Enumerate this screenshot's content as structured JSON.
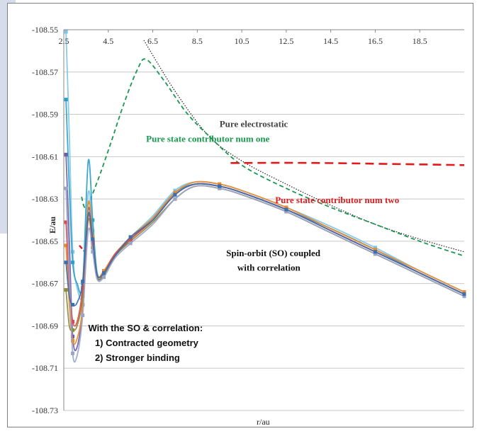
{
  "chart_data": {
    "type": "line",
    "xlabel": "r/au",
    "ylabel": "E/au",
    "x_ticks": [
      "2.5",
      "4.5",
      "6.5",
      "8.5",
      "10.5",
      "12.5",
      "14.5",
      "16.5",
      "18.5"
    ],
    "y_ticks": [
      "-108.55",
      "-108.57",
      "-108.59",
      "-108.61",
      "-108.63",
      "-108.65",
      "-108.67",
      "-108.69",
      "-108.71",
      "-108.73"
    ],
    "xlim": [
      2.5,
      20.5
    ],
    "ylim": [
      -108.73,
      -108.55
    ],
    "grid": "horizontal",
    "annotations": [
      {
        "text": "Pure electrostatic",
        "color": "#444444",
        "x": 9.5,
        "y": -108.596
      },
      {
        "text": "Pure state contributor num one",
        "color": "#1a9850",
        "x": 6.2,
        "y": -108.603
      },
      {
        "text": "Pure state contributor num two",
        "color": "#e31a1c",
        "x": 12.0,
        "y": -108.632
      },
      {
        "text": "Spin-orbit (SO) coupled",
        "color": "#111111",
        "x": 9.8,
        "y": -108.657
      },
      {
        "text": "with correlation",
        "color": "#111111",
        "x": 10.3,
        "y": -108.664
      }
    ],
    "note_lines": [
      "With the SO & correlation:",
      "1) Contracted geometry",
      "2) Stronger binding"
    ],
    "reference_curves": [
      {
        "name": "Pure electrostatic",
        "style": "dotted",
        "color": "#222222",
        "x": [
          6.1,
          7.5,
          9.0,
          10.5,
          12.5,
          14.5,
          16.5,
          18.5,
          20.5
        ],
        "y": [
          -108.555,
          -108.579,
          -108.6,
          -108.612,
          -108.623,
          -108.633,
          -108.642,
          -108.649,
          -108.655
        ]
      },
      {
        "name": "Pure state contributor num one",
        "style": "dashed",
        "color": "#1a9850",
        "x": [
          3.3,
          3.5,
          4.0,
          4.6,
          5.2,
          5.8,
          6.2,
          7.0,
          8.0,
          9.0,
          10.5,
          12.5,
          14.5,
          16.5,
          18.5,
          20.5
        ],
        "y": [
          -108.629,
          -108.634,
          -108.622,
          -108.604,
          -108.585,
          -108.569,
          -108.564,
          -108.574,
          -108.589,
          -108.6,
          -108.614,
          -108.625,
          -108.634,
          -108.642,
          -108.65,
          -108.657
        ]
      },
      {
        "name": "Pure state contributor num two",
        "style": "dashed",
        "color": "#e31a1c",
        "x": [
          10.0,
          14.0,
          20.5
        ],
        "y": [
          -108.613,
          -108.613,
          -108.614
        ]
      }
    ],
    "series": [
      {
        "color": "#7cc4e8",
        "x": [
          2.6,
          2.75,
          2.9,
          3.1,
          3.35,
          3.6,
          3.8,
          4.0,
          4.3,
          4.8,
          5.5,
          6.5,
          7.5,
          8.4,
          9.5,
          10.5,
          12.5,
          14.5,
          16.5,
          18.5,
          20.5
        ],
        "y": [
          -108.551,
          -108.6,
          -108.655,
          -108.672,
          -108.674,
          -108.627,
          -108.645,
          -108.666,
          -108.664,
          -108.656,
          -108.648,
          -108.638,
          -108.626,
          -108.622,
          -108.623,
          -108.626,
          -108.634,
          -108.643,
          -108.653,
          -108.664,
          -108.674
        ]
      },
      {
        "color": "#2a9fc9",
        "x": [
          2.6,
          2.75,
          2.9,
          3.1,
          3.35,
          3.6,
          3.8,
          4.0,
          4.3,
          4.8,
          5.5,
          6.5,
          7.5,
          8.4,
          9.5,
          10.5,
          12.5,
          14.5,
          16.5,
          18.5,
          20.5
        ],
        "y": [
          -108.583,
          -108.625,
          -108.66,
          -108.67,
          -108.67,
          -108.612,
          -108.64,
          -108.665,
          -108.665,
          -108.657,
          -108.649,
          -108.639,
          -108.627,
          -108.623,
          -108.624,
          -108.627,
          -108.635,
          -108.644,
          -108.654,
          -108.665,
          -108.675
        ]
      },
      {
        "color": "#6d5aa8",
        "x": [
          2.6,
          2.75,
          2.9,
          3.1,
          3.35,
          3.6,
          3.8,
          4.0,
          4.3,
          4.8,
          5.5,
          6.5,
          7.5,
          8.4,
          9.5,
          10.5,
          12.5,
          14.5,
          16.5,
          18.5,
          20.5
        ],
        "y": [
          -108.609,
          -108.65,
          -108.695,
          -108.7,
          -108.68,
          -108.635,
          -108.65,
          -108.667,
          -108.666,
          -108.657,
          -108.649,
          -108.64,
          -108.628,
          -108.623,
          -108.624,
          -108.627,
          -108.635,
          -108.645,
          -108.655,
          -108.665,
          -108.675
        ]
      },
      {
        "color": "#f08a24",
        "x": [
          2.6,
          2.75,
          2.9,
          3.1,
          3.35,
          3.6,
          3.8,
          4.0,
          4.3,
          4.8,
          5.5,
          6.5,
          7.5,
          8.4,
          9.5,
          10.5,
          12.5,
          14.5,
          16.5,
          18.5,
          20.5
        ],
        "y": [
          -108.652,
          -108.68,
          -108.697,
          -108.696,
          -108.68,
          -108.632,
          -108.648,
          -108.666,
          -108.664,
          -108.656,
          -108.648,
          -108.639,
          -108.627,
          -108.622,
          -108.623,
          -108.626,
          -108.634,
          -108.644,
          -108.654,
          -108.664,
          -108.674
        ]
      },
      {
        "color": "#8a8a3a",
        "x": [
          2.6,
          2.75,
          2.9,
          3.1,
          3.35,
          3.6,
          3.8,
          4.0,
          4.3,
          4.8,
          5.5,
          6.5,
          7.5,
          8.4,
          9.5,
          10.5,
          12.5,
          14.5,
          16.5,
          18.5,
          20.5
        ],
        "y": [
          -108.673,
          -108.69,
          -108.692,
          -108.69,
          -108.676,
          -108.64,
          -108.653,
          -108.667,
          -108.666,
          -108.657,
          -108.65,
          -108.641,
          -108.63,
          -108.624,
          -108.625,
          -108.628,
          -108.636,
          -108.646,
          -108.656,
          -108.666,
          -108.676
        ]
      },
      {
        "color": "#e04848",
        "x": [
          2.6,
          2.75,
          2.9,
          3.1,
          3.35,
          3.6,
          3.8,
          4.0,
          4.3,
          4.8,
          5.5,
          6.5,
          7.5,
          8.4,
          9.5,
          10.5,
          12.5,
          14.5,
          16.5,
          18.5,
          20.5
        ],
        "y": [
          -108.641,
          -108.67,
          -108.688,
          -108.688,
          -108.672,
          -108.638,
          -108.651,
          -108.666,
          -108.665,
          -108.656,
          -108.649,
          -108.64,
          -108.628,
          -108.623,
          -108.624,
          -108.627,
          -108.635,
          -108.645,
          -108.655,
          -108.665,
          -108.675
        ]
      },
      {
        "color": "#9aa3c8",
        "x": [
          2.6,
          2.75,
          2.9,
          3.1,
          3.35,
          3.6,
          3.8,
          4.0,
          4.3,
          4.8,
          5.5,
          6.5,
          7.5,
          8.4,
          9.5,
          10.5,
          12.5,
          14.5,
          16.5,
          18.5,
          20.5
        ],
        "y": [
          -108.625,
          -108.665,
          -108.703,
          -108.704,
          -108.685,
          -108.645,
          -108.655,
          -108.668,
          -108.667,
          -108.658,
          -108.651,
          -108.642,
          -108.63,
          -108.624,
          -108.625,
          -108.628,
          -108.636,
          -108.646,
          -108.656,
          -108.666,
          -108.676
        ]
      },
      {
        "color": "#3a6fb0",
        "x": [
          2.6,
          2.75,
          2.9,
          3.1,
          3.35,
          3.6,
          3.8,
          4.0,
          4.3,
          4.8,
          5.5,
          6.5,
          7.5,
          8.4,
          9.5,
          10.5,
          12.5,
          14.5,
          16.5,
          18.5,
          20.5
        ],
        "y": [
          -108.66,
          -108.676,
          -108.68,
          -108.679,
          -108.669,
          -108.637,
          -108.649,
          -108.666,
          -108.665,
          -108.657,
          -108.648,
          -108.64,
          -108.628,
          -108.623,
          -108.624,
          -108.627,
          -108.635,
          -108.645,
          -108.655,
          -108.665,
          -108.675
        ]
      }
    ]
  }
}
